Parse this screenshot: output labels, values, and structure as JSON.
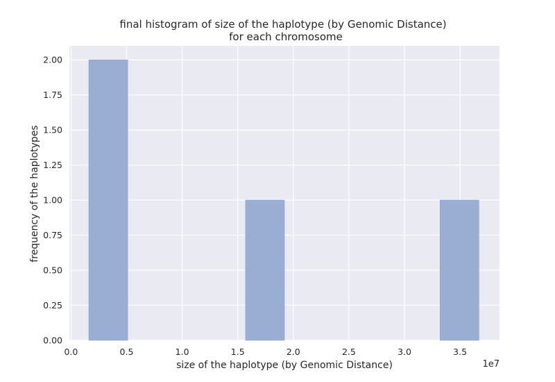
{
  "chart_data": {
    "type": "bar",
    "title_lines": [
      "final histogram of size of the haplotype (by Genomic Distance)",
      "for each chromosome"
    ],
    "xlabel": "size of the haplotype (by Genomic Distance)",
    "ylabel": "frequency of the haplotypes",
    "x_offset_label": "1e7",
    "xlim": [
      -0.015,
      3.855
    ],
    "ylim": [
      0,
      2.1
    ],
    "xticks": [
      0.0,
      0.5,
      1.0,
      1.5,
      2.0,
      2.5,
      3.0,
      3.5
    ],
    "xtick_labels": [
      "0.0",
      "0.5",
      "1.0",
      "1.5",
      "2.0",
      "2.5",
      "3.0",
      "3.5"
    ],
    "yticks": [
      0,
      0.25,
      0.5,
      0.75,
      1.0,
      1.25,
      1.5,
      1.75,
      2.0
    ],
    "ytick_labels": [
      "0.00",
      "0.25",
      "0.50",
      "0.75",
      "1.00",
      "1.25",
      "1.50",
      "1.75",
      "2.00"
    ],
    "bins": [
      {
        "x0": 0.16,
        "x1": 0.51,
        "count": 2
      },
      {
        "x0": 1.57,
        "x1": 1.92,
        "count": 1
      },
      {
        "x0": 3.32,
        "x1": 3.67,
        "count": 1
      }
    ],
    "grid": true,
    "colors": {
      "bar": "#9aadd3",
      "bar_edge": "#8ea2cc",
      "background": "#eaeaf2",
      "grid": "#ffffff",
      "text": "#262626"
    }
  }
}
